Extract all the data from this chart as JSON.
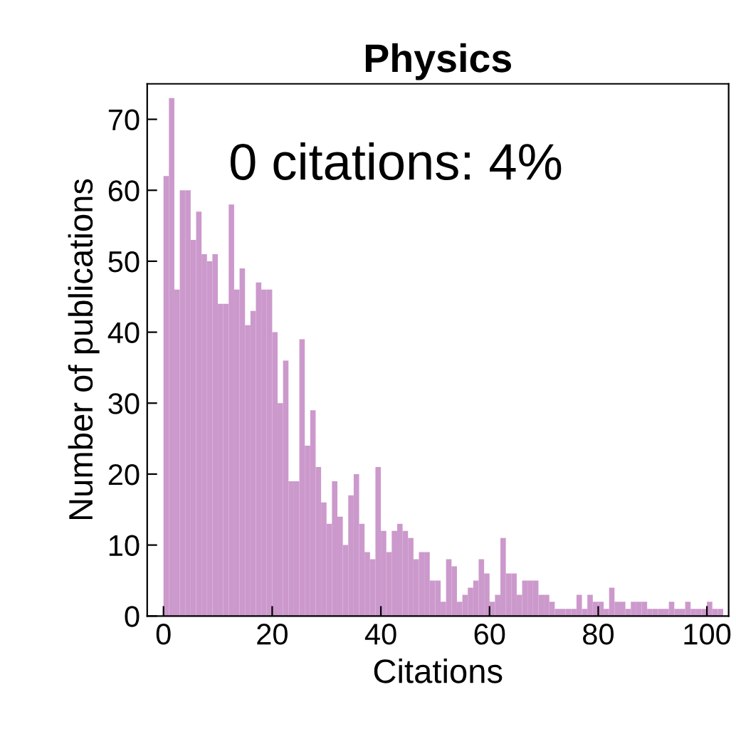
{
  "chart_data": {
    "type": "histogram",
    "title": "Physics",
    "xlabel": "Citations",
    "ylabel": "Number of publications",
    "annotations": [
      "0 citations: 4%"
    ],
    "bins": [
      0,
      1,
      2,
      3,
      4,
      5,
      6,
      7,
      8,
      9,
      10,
      11,
      12,
      13,
      14,
      15,
      16,
      17,
      18,
      19,
      20,
      21,
      22,
      23,
      24,
      25,
      26,
      27,
      28,
      29,
      30,
      31,
      32,
      33,
      34,
      35,
      36,
      37,
      38,
      39,
      40,
      41,
      42,
      43,
      44,
      45,
      46,
      47,
      48,
      49,
      50,
      51,
      52,
      53,
      54,
      55,
      56,
      57,
      58,
      59,
      60,
      61,
      62,
      63,
      64,
      65,
      66,
      67,
      68,
      69,
      70,
      71,
      72,
      73,
      74,
      75,
      76,
      77,
      78,
      79,
      80,
      81,
      82,
      83,
      84,
      85,
      86,
      87,
      88,
      89,
      90,
      91,
      92,
      93,
      94,
      95,
      96,
      97,
      98,
      99,
      100,
      101,
      102,
      103
    ],
    "values": [
      62,
      73,
      46,
      60,
      60,
      53,
      57,
      51,
      50,
      51,
      44,
      44,
      58,
      46,
      49,
      41,
      43,
      47,
      46,
      46,
      40,
      30,
      36,
      19,
      19,
      39,
      24,
      29,
      21,
      16,
      13,
      19,
      14,
      10,
      17,
      20,
      13,
      9,
      8,
      21,
      12,
      9,
      12,
      13,
      12,
      11,
      8,
      9,
      9,
      5,
      5,
      2,
      8,
      7,
      2,
      3,
      4,
      5,
      8,
      6,
      2,
      3,
      11,
      6,
      6,
      3,
      5,
      5,
      5,
      3,
      3,
      2,
      1,
      1,
      1,
      1,
      3,
      1,
      3,
      2,
      2,
      1,
      4,
      2,
      2,
      1,
      2,
      2,
      2,
      1,
      1,
      1,
      1,
      2,
      1,
      1,
      2,
      1,
      1,
      1,
      2,
      1,
      1
    ],
    "color": "#cc99cc",
    "xlim": [
      -3,
      104
    ],
    "ylim": [
      0,
      75
    ],
    "xticks": [
      0,
      20,
      40,
      60,
      80,
      100
    ],
    "yticks": [
      0,
      10,
      20,
      30,
      40,
      50,
      60,
      70
    ],
    "grid": false
  }
}
